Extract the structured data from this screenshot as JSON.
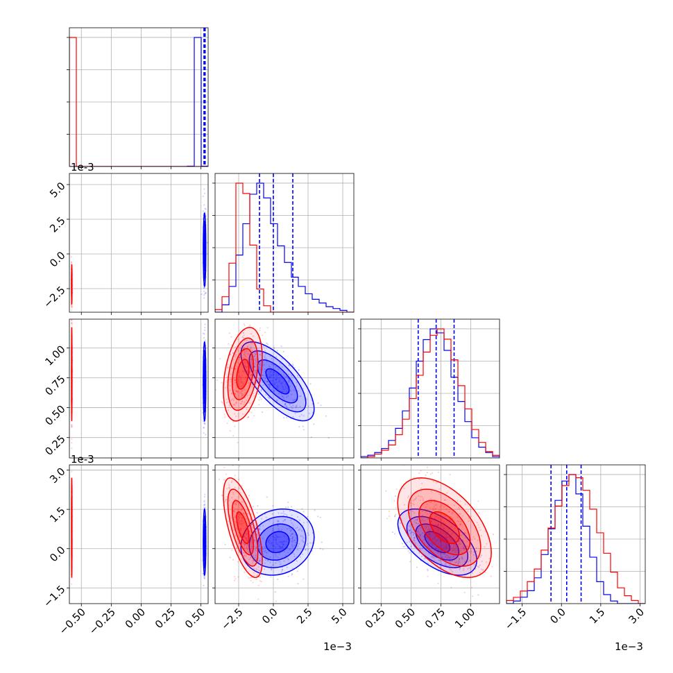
{
  "figure": {
    "type": "corner-plot"
  },
  "colors": {
    "blue": "#0000ff",
    "red": "#ff0000",
    "grid": "#b0b0b0",
    "axis": "#000000"
  },
  "offsets": {
    "p2": "1e-3",
    "p4": "1e-3",
    "x_p2": "1e−3",
    "x_p4": "1e−3"
  },
  "chart_data": {
    "type": "corner",
    "parameters": [
      {
        "id": "p1",
        "range": [
          -0.6,
          0.56
        ],
        "ticks": [
          -0.5,
          -0.25,
          0.0,
          0.25,
          0.5
        ],
        "tick_labels": [
          "−0.50",
          "−0.25",
          "0.00",
          "0.25",
          "0.50"
        ]
      },
      {
        "id": "p2",
        "scale": "1e-3",
        "range": [
          -4.2,
          5.8
        ],
        "ticks": [
          -2.5,
          0.0,
          2.5,
          5.0
        ],
        "tick_labels": [
          "−2.5",
          "0.0",
          "2.5",
          "5.0"
        ]
      },
      {
        "id": "p3",
        "range": [
          0.08,
          1.24
        ],
        "ticks": [
          0.25,
          0.5,
          0.75,
          1.0
        ],
        "tick_labels": [
          "0.25",
          "0.50",
          "0.75",
          "1.00"
        ]
      },
      {
        "id": "p4",
        "scale": "1e-3",
        "range": [
          -2.1,
          3.2
        ],
        "ticks": [
          -1.5,
          0.0,
          1.5,
          3.0
        ],
        "tick_labels": [
          "−1.5",
          "0.0",
          "1.5",
          "3.0"
        ]
      }
    ],
    "series": [
      {
        "color": "blue",
        "means": [
          0.53,
          0.3,
          0.72,
          0.25
        ],
        "quantiles": [
          [
            0.525,
            0.53,
            0.535
          ],
          [
            -1.0,
            0.0,
            1.4
          ],
          [
            0.56,
            0.71,
            0.86
          ],
          [
            -0.4,
            0.2,
            0.75
          ]
        ],
        "hist": {
          "p1": [
            0,
            0,
            0,
            0,
            0,
            0,
            0,
            0,
            0,
            0,
            0,
            0,
            0,
            0,
            0,
            0,
            0,
            0.3,
            100,
            0.3
          ],
          "p2": [
            0,
            4,
            14,
            31,
            48,
            64,
            70,
            62,
            48,
            36,
            27,
            19,
            14,
            10,
            7,
            5,
            3,
            2,
            1,
            0
          ],
          "p3": [
            1,
            2,
            4,
            7,
            13,
            22,
            35,
            52,
            72,
            88,
            96,
            93,
            80,
            60,
            42,
            27,
            15,
            8,
            4,
            1
          ],
          "p4": [
            0,
            2,
            5,
            10,
            20,
            38,
            58,
            80,
            95,
            100,
            85,
            60,
            36,
            17,
            7,
            2,
            0,
            0,
            0,
            0
          ]
        },
        "corr": {
          "p2p1": 0.0,
          "p3p1": 0.0,
          "p4p1": 0.0,
          "p3p2": -0.7,
          "p4p2": 0.15,
          "p4p3": -0.55
        }
      },
      {
        "color": "red",
        "means": [
          -0.58,
          -2.2,
          0.78,
          0.8
        ],
        "quantiles": [],
        "hist": {
          "p1": [
            100,
            0,
            0,
            0,
            0,
            0,
            0,
            0,
            0,
            0,
            0,
            0,
            0,
            0,
            0,
            0,
            0,
            0,
            0,
            0
          ],
          "p2": [
            2,
            12,
            38,
            100,
            92,
            52,
            18,
            5,
            0,
            0,
            0,
            0,
            0,
            0,
            0,
            0,
            0,
            0,
            0,
            0
          ],
          "p3": [
            0,
            1,
            3,
            6,
            10,
            18,
            30,
            46,
            64,
            82,
            95,
            100,
            92,
            76,
            56,
            38,
            22,
            12,
            5,
            2
          ],
          "p4": [
            2,
            4,
            8,
            14,
            22,
            34,
            48,
            62,
            75,
            82,
            80,
            72,
            60,
            45,
            32,
            20,
            10,
            5,
            2,
            0
          ]
        },
        "corr": {
          "p2p1": 0.0,
          "p3p1": 0.0,
          "p4p1": 0.0,
          "p3p2": 0.35,
          "p4p2": -0.65,
          "p4p3": -0.5
        }
      }
    ],
    "grid": true,
    "x_tick_rotation": 45,
    "y_tick_rotation": 45
  }
}
